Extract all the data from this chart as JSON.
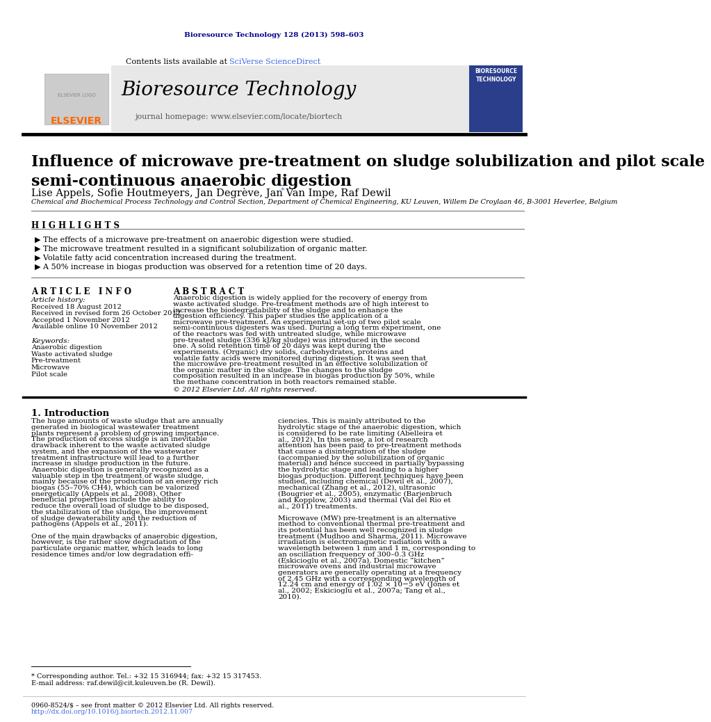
{
  "journal_ref": "Bioresource Technology 128 (2013) 598–603",
  "journal_ref_color": "#00008B",
  "contents_text": "Contents lists available at ",
  "sciverse_text": "SciVerse ScienceDirect",
  "sciverse_color": "#4169E1",
  "journal_homepage_text": "journal homepage: www.elsevier.com/locate/biortech",
  "journal_name": "Bioresource Technology",
  "header_bg": "#E8E8E8",
  "paper_title": "Influence of microwave pre-treatment on sludge solubilization and pilot scale\nsemi-continuous anaerobic digestion",
  "authors": "Lise Appels, Sofie Houtmeyers, Jan Degrève, Jan Van Impe, Raf Dewil",
  "author_asterisk": "*",
  "affiliation": "Chemical and Biochemical Process Technology and Control Section, Department of Chemical Engineering, KU Leuven, Willem De Croylaan 46, B-3001 Heverlee, Belgium",
  "highlights_title": "H I G H L I G H T S",
  "highlights": [
    "The effects of a microwave pre-treatment on anaerobic digestion were studied.",
    "The microwave treatment resulted in a significant solubilization of organic matter.",
    "Volatile fatty acid concentration increased during the treatment.",
    "A 50% increase in biogas production was observed for a retention time of 20 days."
  ],
  "article_info_title": "A R T I C L E   I N F O",
  "article_history_label": "Article history:",
  "article_history": [
    "Received 18 August 2012",
    "Received in revised form 26 October 2012",
    "Accepted 1 November 2012",
    "Available online 10 November 2012"
  ],
  "keywords_label": "Keywords:",
  "keywords": [
    "Anaerobic digestion",
    "Waste activated sludge",
    "Pre-treatment",
    "Microwave",
    "Pilot scale"
  ],
  "abstract_title": "A B S T R A C T",
  "abstract_text": "Anaerobic digestion is widely applied for the recovery of energy from waste activated sludge. Pre-treatment methods are of high interest to increase the biodegradability of the sludge and to enhance the digestion efficiency. This paper studies the application of a microwave pre-treatment. An experimental set-up of two pilot scale semi-continuous digesters was used. During a long term experiment, one of the reactors was fed with untreated sludge, while microwave pre-treated sludge (336 kJ/kg sludge) was introduced in the second one. A solid retention time of 20 days was kept during the experiments. (Organic) dry solids, carbohydrates, proteins and volatile fatty acids were monitored during digestion. It was seen that the microwave pre-treatment resulted in an effective solubilization of the organic matter in the sludge. The changes to the sludge composition resulted in an increase in biogas production by 50%, while the methane concentration in both reactors remained stable.",
  "copyright_text": "© 2012 Elsevier Ltd. All rights reserved.",
  "intro_title": "1. Introduction",
  "intro_col1": "The huge amounts of waste sludge that are annually generated in biological wastewater treatment plants represent a problem of growing importance. The production of excess sludge is an inevitable drawback inherent to the waste activated sludge system, and the expansion of the wastewater treatment infrastructure will lead to a further increase in sludge production in the future. Anaerobic digestion is generally recognized as a valuable step in the treatment of waste sludge, mainly because of the production of an energy rich biogas (55–70% CH4), which can be valorized energetically (Appels et al., 2008). Other beneficial properties include the ability to reduce the overall load of sludge to be disposed, the stabilization of the sludge, the improvement of sludge dewaterability and the reduction of pathogens (Appels et al., 2011).\n\nOne of the main drawbacks of anaerobic digestion, however, is the rather slow degradation of the particulate organic matter, which leads to long residence times and/or low degradation effi-",
  "intro_col2": "ciencies. This is mainly attributed to the hydrolytic stage of the anaerobic digestion, which is considered to be rate limiting (Abelleira et al., 2012). In this sense, a lot of research attention has been paid to pre-treatment methods that cause a disintegration of the sludge (accompanied by the solubilization of organic material) and hence succeed in partially bypassing the hydrolytic stage and leading to a higher biogas production. Different techniques have been studied, including chemical (Dewil et al., 2007), mechanical (Zhang et al., 2012), ultrasonic (Bougrier et al., 2005), enzymatic (Barjenbruch and Kopplow, 2003) and thermal (Val del Rio et al., 2011) treatments.\n\nMicrowave (MW) pre-treatment is an alternative method to conventional thermal pre-treatment and its potential has been well recognized in sludge treatment (Mudhoo and Sharma, 2011). Microwave irradiation is electromagnetic radiation with a wavelength between 1 mm and 1 m, corresponding to an oscillation frequency of 300–0.3 GHz (Eskicioglu et al., 2007a). Domestic “kitchen” microwave ovens and industrial microwave generators are generally operating at a frequency of 2.45 GHz with a corresponding wavelength of 12.24 cm and energy of 1.02 × 10−5 eV (Jones et al., 2002; Eskicioglu et al., 2007a; Tang et al., 2010).",
  "footnote1": "* Corresponding author. Tel.: +32 15 316944; fax: +32 15 317453.",
  "footnote2": "E-mail address: raf.dewil@cit.kuleuven.be (R. Dewil).",
  "footer1": "0960-8524/$ – see front matter © 2012 Elsevier Ltd. All rights reserved.",
  "footer2": "http://dx.doi.org/10.1016/j.biortech.2012.11.007"
}
